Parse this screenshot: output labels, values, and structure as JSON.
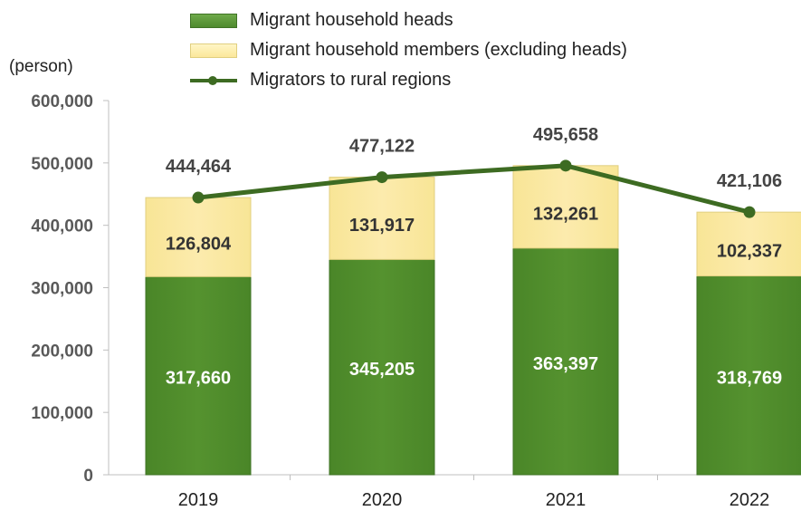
{
  "legend": {
    "heads": "Migrant household heads",
    "members": "Migrant household members (excluding heads)",
    "total": "Migrators to rural regions"
  },
  "unit_label": "(person)",
  "colors": {
    "heads": "#55922f",
    "members": "#fcebad",
    "total_line": "#3d6b22",
    "axis_text": "#595959"
  },
  "chart_data": {
    "type": "bar",
    "stacked": true,
    "categories": [
      "2019",
      "2020",
      "2021",
      "2022"
    ],
    "series": [
      {
        "name": "Migrant household heads",
        "values": [
          317660,
          345205,
          363397,
          318769
        ],
        "labels": [
          "317,660",
          "345,205",
          "363,397",
          "318,769"
        ]
      },
      {
        "name": "Migrant household members (excluding heads)",
        "values": [
          126804,
          131917,
          132261,
          102337
        ],
        "labels": [
          "126,804",
          "131,917",
          "132,261",
          "102,337"
        ]
      }
    ],
    "line": {
      "name": "Migrators to rural regions",
      "values": [
        444464,
        477122,
        495658,
        421106
      ],
      "labels": [
        "444,464",
        "477,122",
        "495,658",
        "421,106"
      ]
    },
    "ylim": [
      0,
      600000
    ],
    "yticks": [
      "0",
      "100,000",
      "200,000",
      "300,000",
      "400,000",
      "500,000",
      "600,000"
    ],
    "ylabel": "(person)",
    "grid": false,
    "legend_position": "top"
  }
}
